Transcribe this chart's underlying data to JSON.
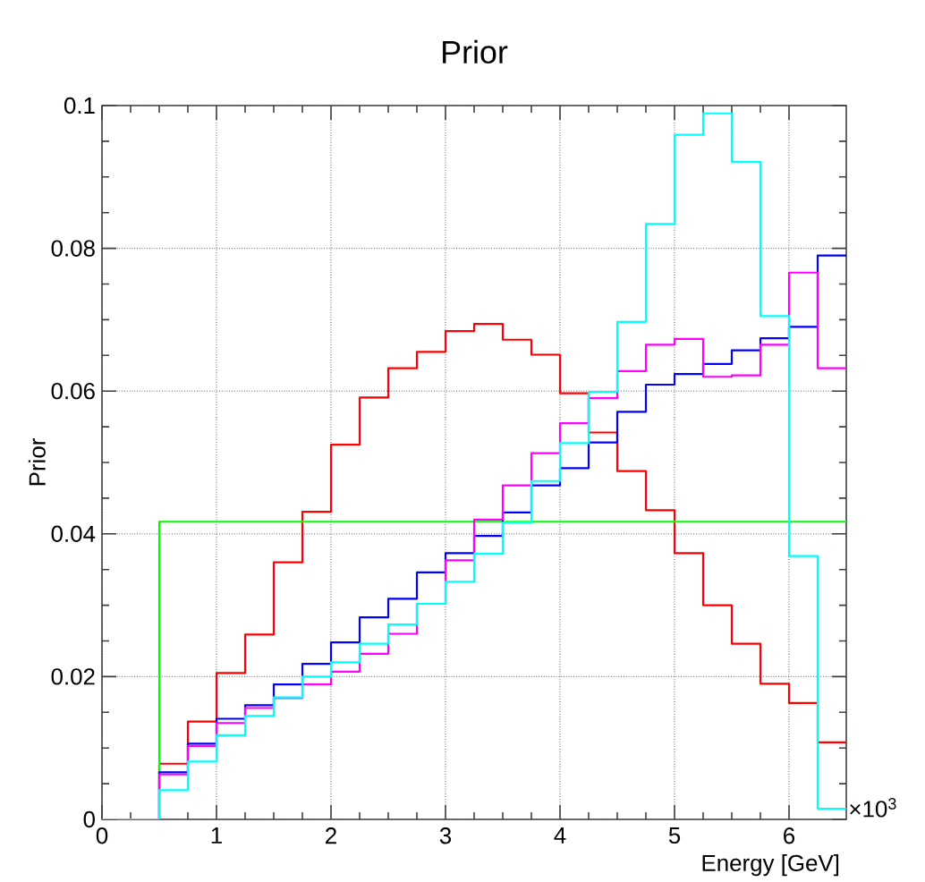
{
  "chart_data": {
    "type": "histogram",
    "title": "Prior",
    "xlabel": "Energy [GeV]",
    "ylabel": "Prior",
    "annotations": [
      "×10$^{3}$"
    ],
    "bins": [
      0,
      0.25,
      0.5,
      0.75,
      1,
      1.25,
      1.5,
      1.75,
      2,
      2.25,
      2.5,
      2.75,
      3,
      3.25,
      3.5,
      3.75,
      4,
      4.25,
      4.5,
      4.75,
      5,
      5.25,
      5.5,
      5.75,
      6,
      6.25,
      6.5
    ],
    "series": [
      {
        "color": "#ff0000",
        "values": [
          0,
          0,
          0.0078,
          0.0137,
          0.0205,
          0.0259,
          0.036,
          0.0431,
          0.0525,
          0.0591,
          0.0632,
          0.0655,
          0.0684,
          0.0694,
          0.0672,
          0.0651,
          0.0597,
          0.0542,
          0.0488,
          0.0433,
          0.0373,
          0.03,
          0.0246,
          0.019,
          0.0163,
          0.0108
        ]
      },
      {
        "color": "#00ff00",
        "values": [
          0,
          0,
          0.0417,
          0.0417,
          0.0417,
          0.0417,
          0.0417,
          0.0417,
          0.0417,
          0.0417,
          0.0417,
          0.0417,
          0.0417,
          0.0417,
          0.0417,
          0.0417,
          0.0417,
          0.0417,
          0.0417,
          0.0417,
          0.0417,
          0.0417,
          0.0417,
          0.0417,
          0.0417,
          0.0417
        ]
      },
      {
        "color": "#0000ff",
        "values": [
          0,
          0,
          0.0066,
          0.0106,
          0.0141,
          0.016,
          0.0189,
          0.0218,
          0.0248,
          0.0283,
          0.0309,
          0.0346,
          0.0373,
          0.0397,
          0.043,
          0.0468,
          0.0492,
          0.0528,
          0.0571,
          0.0609,
          0.0624,
          0.0638,
          0.0657,
          0.0674,
          0.069,
          0.079
        ]
      },
      {
        "color": "#ff00ff",
        "values": [
          0,
          0,
          0.0063,
          0.0103,
          0.0135,
          0.0156,
          0.017,
          0.0189,
          0.0207,
          0.0232,
          0.026,
          0.0302,
          0.0363,
          0.042,
          0.0468,
          0.0513,
          0.0555,
          0.059,
          0.0628,
          0.0665,
          0.0673,
          0.062,
          0.0622,
          0.0665,
          0.0766,
          0.0632
        ]
      },
      {
        "color": "#00ffff",
        "values": [
          0,
          0,
          0.0041,
          0.0081,
          0.0118,
          0.0145,
          0.0171,
          0.02,
          0.022,
          0.0246,
          0.0273,
          0.0302,
          0.0333,
          0.0372,
          0.0416,
          0.0474,
          0.0527,
          0.0599,
          0.0697,
          0.0834,
          0.0959,
          0.0989,
          0.0921,
          0.0705,
          0.0369,
          0.0015
        ]
      }
    ],
    "xlim": [
      0,
      6.5
    ],
    "ylim": [
      0,
      0.1
    ],
    "xticks": [
      0,
      1,
      2,
      3,
      4,
      5,
      6
    ],
    "yticks": [
      0,
      0.02,
      0.04,
      0.06,
      0.08,
      0.1
    ],
    "grid": true
  }
}
